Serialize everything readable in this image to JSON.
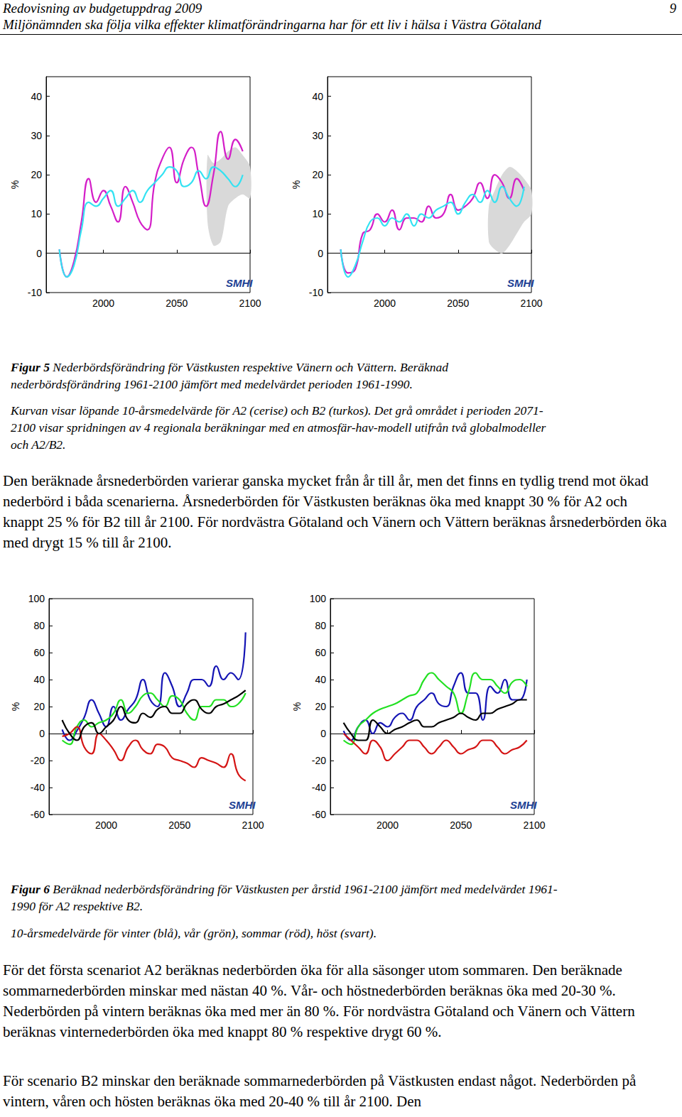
{
  "document": {
    "header": {
      "title": "Redovisning av budgetuppdrag 2009",
      "subtitle": "Miljönämnden ska följa vilka effekter klimatförändringarna har för ett liv i hälsa i Västra Götaland",
      "page": "9"
    },
    "figure5": {
      "label": "Figur 5",
      "caption": " Nederbördsförändring för Västkusten respektive Vänern och Vättern. Beräknad nederbördsförändring 1961-2100 jämfört med medelvärdet perioden 1961-1990.",
      "note": "Kurvan visar löpande 10-årsmedelvärde för A2 (cerise) och B2 (turkos). Det grå området i perioden 2071-2100 visar spridningen av 4 regionala beräkningar med en atmosfär-hav-modell utifrån två globalmodeller och A2/B2."
    },
    "paragraphs_after_figure5": [
      "Den beräknade årsnederbörden varierar ganska mycket från år till år, men det finns en tydlig trend mot ökad nederbörd i båda scenarierna. Årsnederbörden för Västkusten beräknas öka med knappt 30 % för A2 och knappt 25 % för B2 till år 2100. För nordvästra Götaland och Vänern och Vättern beräknas årsnederbörden öka med drygt 15 % till år 2100."
    ],
    "figure6": {
      "label": "Figur 6",
      "caption": " Beräknad nederbördsförändring för Västkusten per årstid 1961-2100 jämfört med medelvärdet 1961-1990 för A2 respektive B2.",
      "note": "10-årsmedelvärde för vinter (blå), vår (grön), sommar (röd), höst (svart)."
    },
    "paragraphs_after_figure6": [
      "För det första scenariot A2 beräknas nederbörden öka för alla säsonger utom sommaren. Den beräknade sommarnederbörden minskar med nästan 40 %. Vår- och höstnederbörden beräknas öka med 20-30 %. Nederbörden på vintern beräknas öka med mer än 80 %. För nordvästra Götaland och Vänern och Vättern beräknas vinternederbörden öka med knappt 80 % respektive drygt 60 %.",
      "För scenario B2 minskar den beräknade sommarnederbörden på Västkusten endast något. Nederbörden på vintern, våren och hösten beräknas öka med 20-40 % till år 2100. Den"
    ]
  },
  "chart_data": [
    {
      "type": "line",
      "ylabel": "%",
      "logo": "SMHI",
      "x": [
        1970,
        1975,
        1980,
        1985,
        1990,
        1995,
        2000,
        2005,
        2010,
        2015,
        2020,
        2025,
        2030,
        2035,
        2040,
        2045,
        2050,
        2055,
        2060,
        2065,
        2070,
        2075,
        2080,
        2085,
        2090,
        2095
      ],
      "xlim": [
        1961,
        2100
      ],
      "xticks": [
        2000,
        2050,
        2100
      ],
      "ylim": [
        -10,
        45
      ],
      "yticks": [
        -10,
        0,
        10,
        20,
        30,
        40
      ],
      "series": [
        {
          "name": "A2",
          "color": "#d41ec8",
          "values": [
            1,
            -6,
            -2,
            8,
            19,
            13,
            16,
            12,
            8,
            17,
            13,
            8,
            6,
            18,
            24,
            27,
            18,
            24,
            27,
            20,
            12,
            20,
            31,
            24,
            29,
            26
          ]
        },
        {
          "name": "B2",
          "color": "#33e2f2",
          "values": [
            1,
            -6,
            -3,
            6,
            13,
            12,
            14,
            16,
            12,
            14,
            16,
            13,
            16,
            18,
            20,
            22,
            21,
            17,
            18,
            21,
            19,
            22,
            21,
            19,
            17,
            20
          ]
        }
      ],
      "spread": {
        "color": "#d9d9d9",
        "x": [
          2071,
          2075,
          2080,
          2085,
          2090,
          2095,
          2100
        ],
        "lower": [
          8,
          2,
          3,
          12,
          14,
          15,
          14
        ],
        "upper": [
          25,
          23,
          24,
          26,
          27,
          25,
          22
        ]
      }
    },
    {
      "type": "line",
      "ylabel": "%",
      "logo": "SMHI",
      "x": [
        1970,
        1975,
        1980,
        1985,
        1990,
        1995,
        2000,
        2005,
        2010,
        2015,
        2020,
        2025,
        2030,
        2035,
        2040,
        2045,
        2050,
        2055,
        2060,
        2065,
        2070,
        2075,
        2080,
        2085,
        2090,
        2095
      ],
      "xlim": [
        1961,
        2100
      ],
      "xticks": [
        2000,
        2050,
        2100
      ],
      "ylim": [
        -10,
        45
      ],
      "yticks": [
        -10,
        0,
        10,
        20,
        30,
        40
      ],
      "series": [
        {
          "name": "A2",
          "color": "#d41ec8",
          "values": [
            1,
            -5,
            -4,
            5,
            6,
            10,
            8,
            11,
            6,
            9,
            9,
            8,
            12,
            9,
            10,
            15,
            11,
            12,
            14,
            18,
            14,
            20,
            18,
            14,
            19,
            16
          ]
        },
        {
          "name": "B2",
          "color": "#33e2f2",
          "values": [
            1,
            -6,
            -3,
            3,
            8,
            9,
            7,
            9,
            8,
            10,
            7,
            10,
            9,
            11,
            12,
            13,
            10,
            13,
            15,
            13,
            16,
            13,
            17,
            14,
            12,
            17
          ]
        }
      ],
      "spread": {
        "color": "#d9d9d9",
        "x": [
          2071,
          2075,
          2080,
          2085,
          2090,
          2095,
          2100
        ],
        "lower": [
          3,
          1,
          0,
          2,
          5,
          8,
          10
        ],
        "upper": [
          12,
          16,
          20,
          22,
          21,
          19,
          16
        ]
      }
    },
    {
      "type": "line",
      "ylabel": "%",
      "logo": "SMHI",
      "x": [
        1970,
        1975,
        1980,
        1985,
        1990,
        1995,
        2000,
        2005,
        2010,
        2015,
        2020,
        2025,
        2030,
        2035,
        2040,
        2045,
        2050,
        2055,
        2060,
        2065,
        2070,
        2075,
        2080,
        2085,
        2090,
        2095
      ],
      "xlim": [
        1961,
        2100
      ],
      "xticks": [
        2000,
        2050,
        2100
      ],
      "ylim": [
        -60,
        100
      ],
      "yticks": [
        -60,
        -40,
        -20,
        0,
        20,
        40,
        60,
        80,
        100
      ],
      "series": [
        {
          "name": "vinter",
          "color": "#1414b4",
          "values": [
            3,
            -5,
            2,
            12,
            25,
            15,
            5,
            20,
            10,
            18,
            25,
            40,
            25,
            20,
            45,
            35,
            20,
            30,
            40,
            40,
            35,
            50,
            40,
            45,
            40,
            75
          ]
        },
        {
          "name": "vår",
          "color": "#22e022",
          "values": [
            -5,
            -8,
            5,
            10,
            5,
            8,
            10,
            15,
            25,
            15,
            20,
            28,
            30,
            25,
            20,
            28,
            25,
            15,
            10,
            20,
            20,
            25,
            25,
            20,
            22,
            30
          ]
        },
        {
          "name": "sommar",
          "color": "#d41414",
          "values": [
            -2,
            0,
            5,
            -10,
            -15,
            0,
            -5,
            -12,
            -20,
            -10,
            -5,
            -12,
            -15,
            -8,
            -10,
            -18,
            -20,
            -22,
            -25,
            -18,
            -20,
            -22,
            -25,
            -15,
            -30,
            -35
          ]
        },
        {
          "name": "höst",
          "color": "#000000",
          "values": [
            10,
            0,
            -5,
            5,
            8,
            0,
            5,
            10,
            20,
            10,
            8,
            15,
            12,
            18,
            20,
            15,
            15,
            22,
            25,
            18,
            15,
            20,
            22,
            25,
            28,
            32
          ]
        }
      ]
    },
    {
      "type": "line",
      "ylabel": "%",
      "logo": "SMHI",
      "x": [
        1970,
        1975,
        1980,
        1985,
        1990,
        1995,
        2000,
        2005,
        2010,
        2015,
        2020,
        2025,
        2030,
        2035,
        2040,
        2045,
        2050,
        2055,
        2060,
        2065,
        2070,
        2075,
        2080,
        2085,
        2090,
        2095
      ],
      "xlim": [
        1961,
        2100
      ],
      "xticks": [
        2000,
        2050,
        2100
      ],
      "ylim": [
        -60,
        100
      ],
      "yticks": [
        -60,
        -40,
        -20,
        0,
        20,
        40,
        60,
        80,
        100
      ],
      "series": [
        {
          "name": "vinter",
          "color": "#1414b4",
          "values": [
            2,
            -5,
            5,
            10,
            0,
            8,
            5,
            12,
            15,
            10,
            20,
            25,
            30,
            22,
            20,
            35,
            45,
            30,
            30,
            10,
            35,
            30,
            40,
            25,
            25,
            40
          ]
        },
        {
          "name": "vår",
          "color": "#22e022",
          "values": [
            -5,
            -8,
            5,
            10,
            15,
            18,
            20,
            22,
            25,
            28,
            30,
            40,
            45,
            40,
            35,
            30,
            15,
            30,
            45,
            40,
            40,
            35,
            30,
            38,
            40,
            35
          ]
        },
        {
          "name": "sommar",
          "color": "#d41414",
          "values": [
            0,
            -5,
            -10,
            -15,
            -5,
            -10,
            -20,
            -15,
            -10,
            -5,
            -5,
            -10,
            -15,
            -10,
            -5,
            -10,
            -15,
            -12,
            -10,
            -5,
            -5,
            -10,
            -15,
            -12,
            -10,
            -5
          ]
        },
        {
          "name": "höst",
          "color": "#000000",
          "values": [
            8,
            0,
            -5,
            -5,
            10,
            5,
            0,
            3,
            5,
            8,
            10,
            5,
            5,
            8,
            10,
            12,
            15,
            12,
            10,
            15,
            15,
            18,
            20,
            22,
            25,
            25
          ]
        }
      ]
    }
  ]
}
